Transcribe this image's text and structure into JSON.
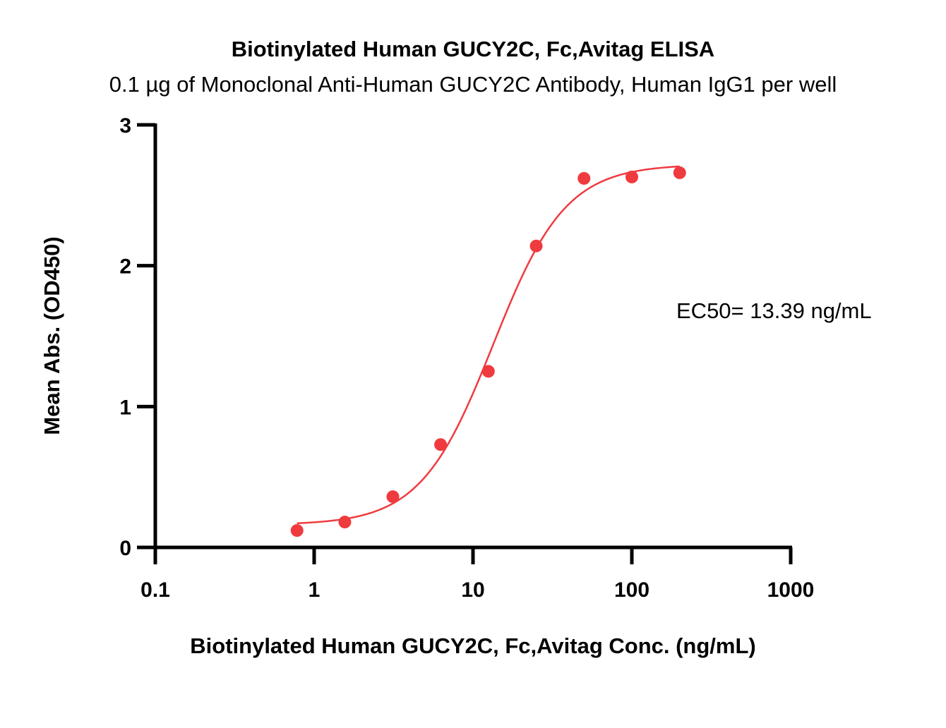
{
  "chart_data": {
    "type": "scatter",
    "title": "Biotinylated Human GUCY2C, Fc,Avitag ELISA",
    "subtitle": "0.1 µg of Monoclonal Anti-Human GUCY2C Antibody, Human IgG1 per well",
    "xlabel": "Biotinylated Human GUCY2C, Fc,Avitag Conc. (ng/mL)",
    "ylabel": "Mean Abs. (OD450)",
    "x_scale": "log",
    "xlim": [
      0.1,
      1000
    ],
    "ylim": [
      0,
      3
    ],
    "x_ticks": [
      0.1,
      1,
      10,
      100,
      1000
    ],
    "x_tick_labels": [
      "0.1",
      "1",
      "10",
      "100",
      "1000"
    ],
    "y_ticks": [
      0,
      1,
      2,
      3
    ],
    "y_tick_labels": [
      "0",
      "1",
      "2",
      "3"
    ],
    "grid": false,
    "series": [
      {
        "color": "#ef3b3f",
        "points": [
          {
            "x": 0.78,
            "y": 0.12
          },
          {
            "x": 1.56,
            "y": 0.18
          },
          {
            "x": 3.13,
            "y": 0.36
          },
          {
            "x": 6.25,
            "y": 0.73
          },
          {
            "x": 12.5,
            "y": 1.25
          },
          {
            "x": 25,
            "y": 2.14
          },
          {
            "x": 50,
            "y": 2.62
          },
          {
            "x": 100,
            "y": 2.63
          },
          {
            "x": 200,
            "y": 2.66
          }
        ],
        "fit": {
          "model": "4PL",
          "bottom": 0.16,
          "top": 2.72,
          "ec50": 13.39,
          "hill": 1.9,
          "x_range": [
            0.78,
            200
          ]
        }
      }
    ],
    "annotations": [
      {
        "text": "EC50= 13.39 ng/mL"
      }
    ]
  }
}
